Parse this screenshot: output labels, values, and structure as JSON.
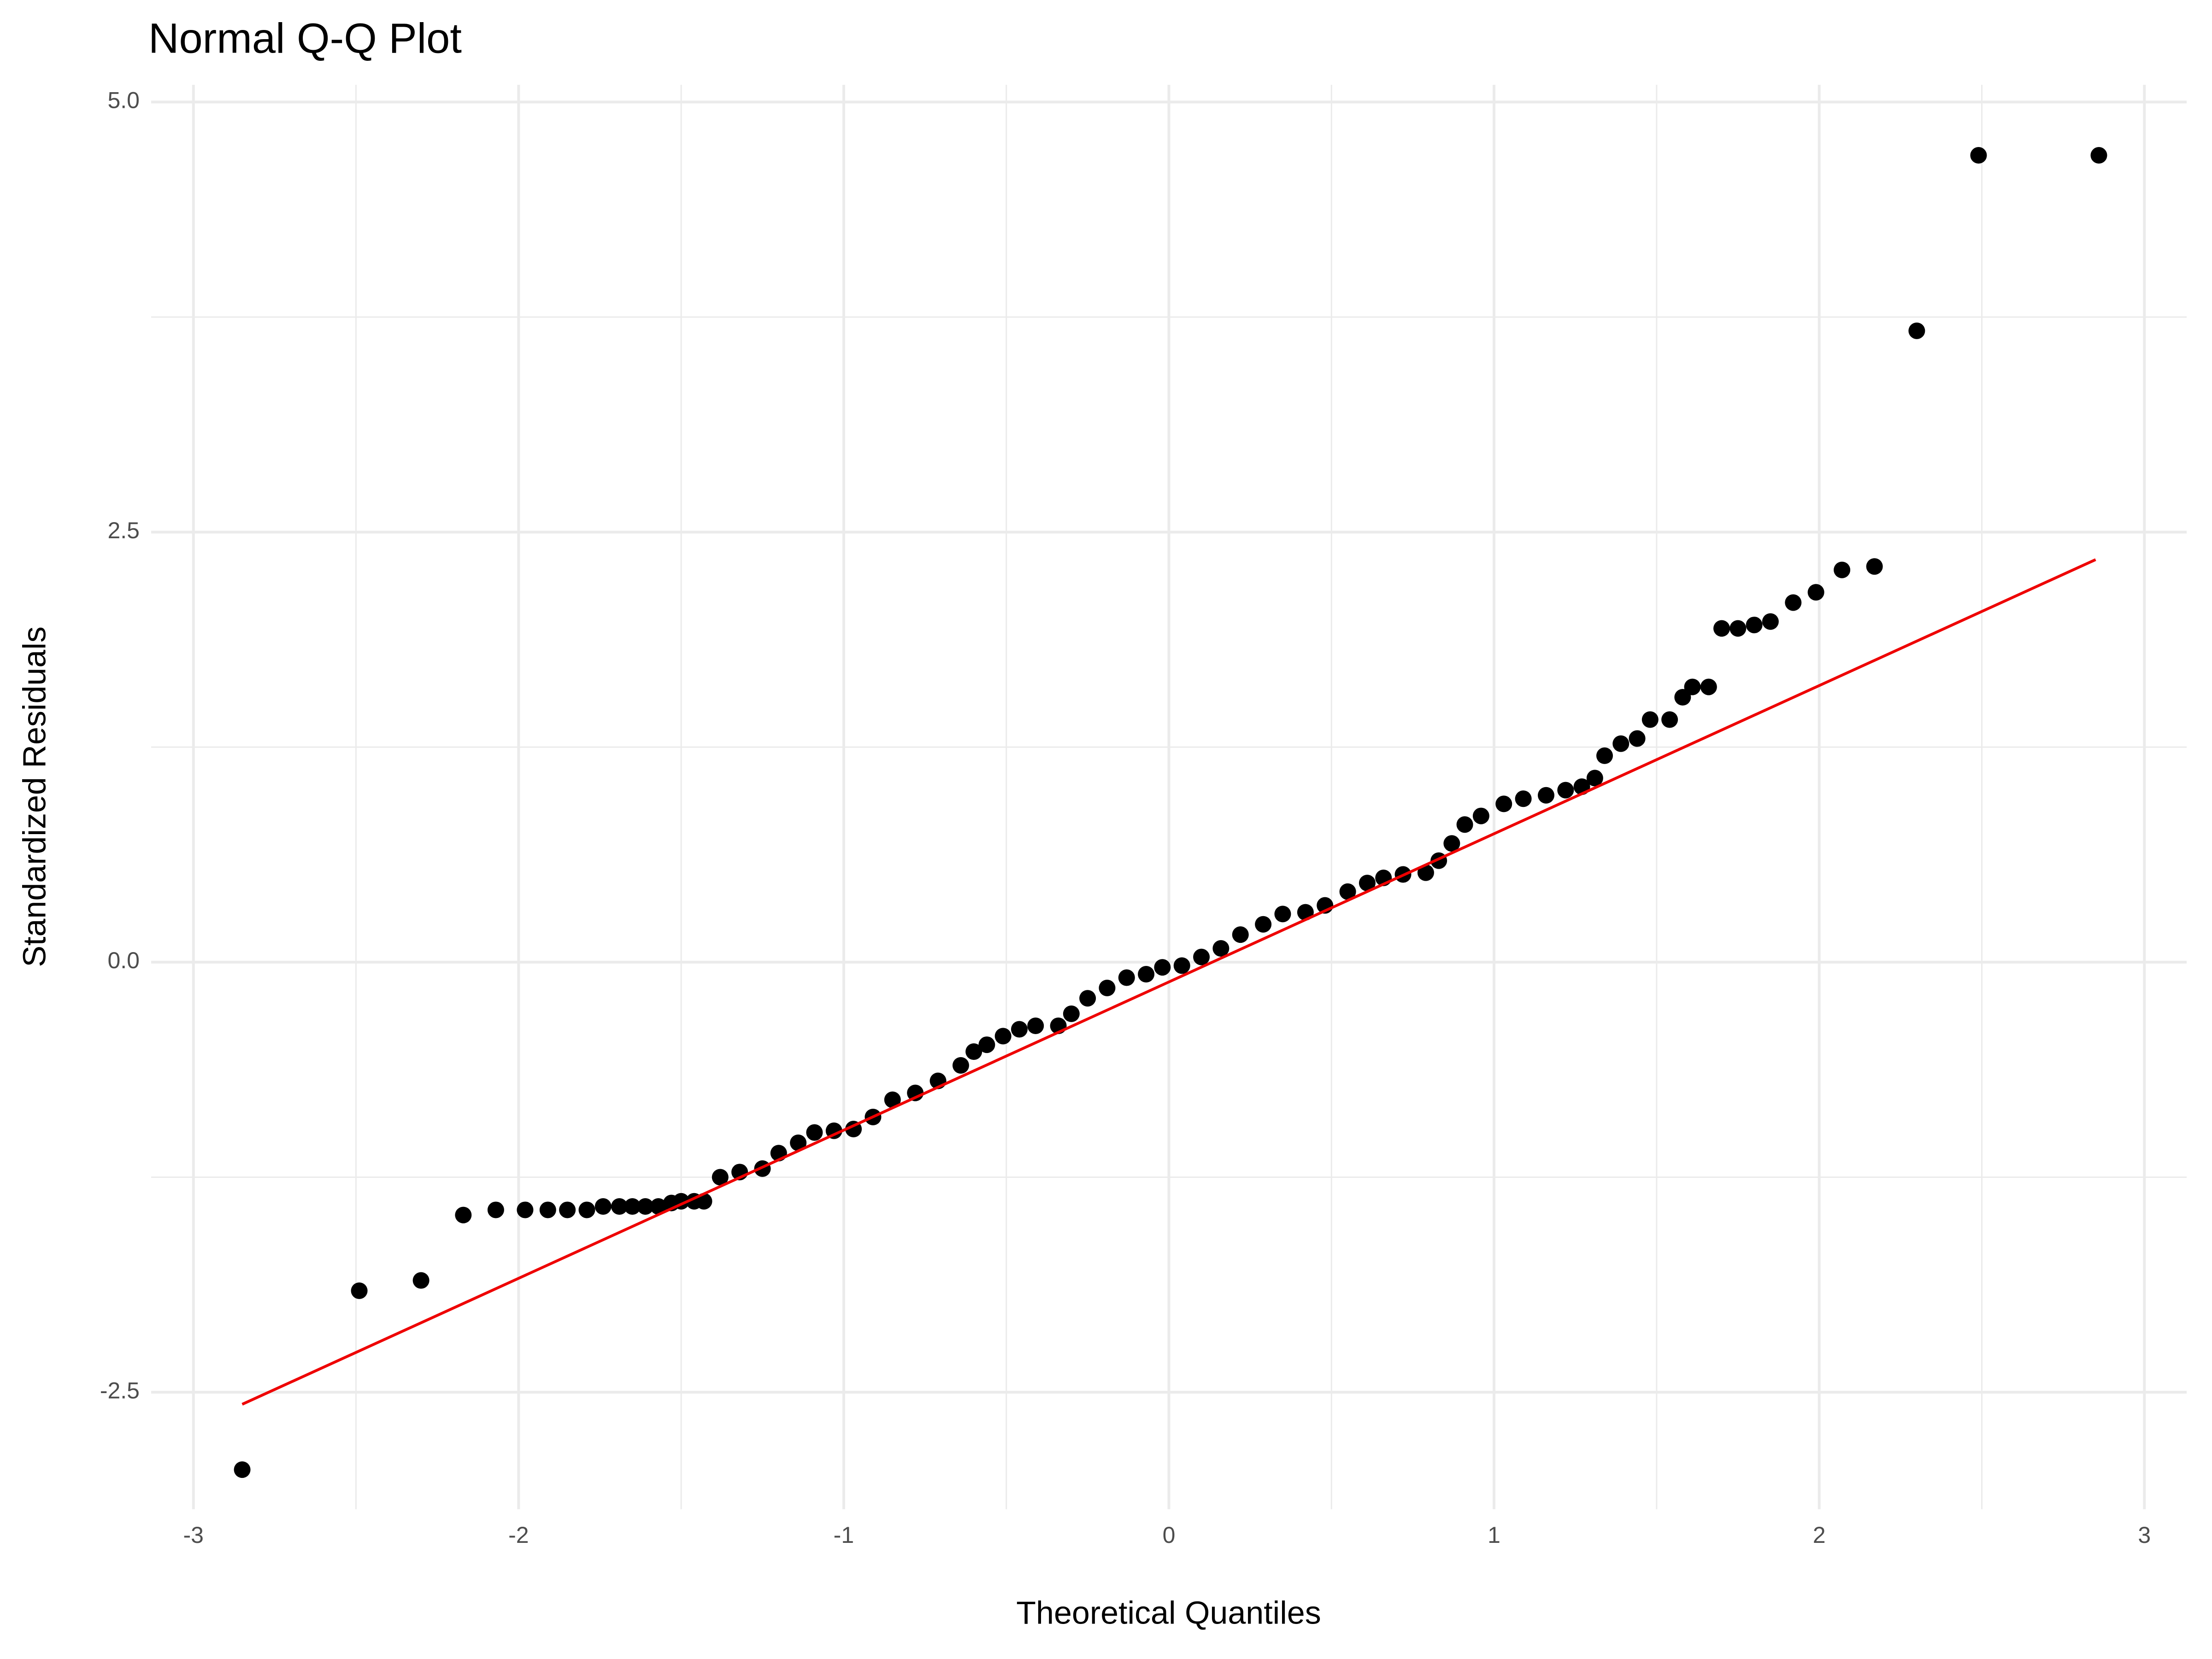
{
  "chart_data": {
    "type": "scatter",
    "title": "Normal Q-Q Plot",
    "x_label": "Theoretical Quantiles",
    "y_label": "Standardized Residuals",
    "xlim": [
      -3.13,
      3.13
    ],
    "ylim": [
      -3.18,
      5.1
    ],
    "xticks": [
      -3,
      -2,
      -1,
      0,
      1,
      2,
      3
    ],
    "yticks": [
      -2.5,
      {
        "value": 0,
        "label": "0.0"
      },
      2.5,
      {
        "value": 5,
        "label": "5.0"
      }
    ],
    "x_minor_grid": [
      -2.5,
      -1.5,
      -0.5,
      0.5,
      1.5,
      2.5
    ],
    "y_minor_grid": [
      -1.25,
      1.25,
      3.75
    ],
    "grid": true,
    "series": [
      {
        "color": "#000000",
        "x": [
          -2.85,
          -2.49,
          -2.3,
          -2.17,
          -2.07,
          -1.98,
          -1.91,
          -1.85,
          -1.79,
          -1.74,
          -1.69,
          -1.65,
          -1.61,
          -1.57,
          -1.53,
          -1.5,
          -1.46,
          -1.43,
          -1.38,
          -1.32,
          -1.25,
          -1.2,
          -1.14,
          -1.09,
          -1.03,
          -0.97,
          -0.91,
          -0.85,
          -0.78,
          -0.71,
          -0.64,
          -0.6,
          -0.56,
          -0.51,
          -0.46,
          -0.41,
          -0.34,
          -0.3,
          -0.25,
          -0.19,
          -0.13,
          -0.07,
          -0.02,
          0.04,
          0.1,
          0.16,
          0.22,
          0.29,
          0.35,
          0.42,
          0.48,
          0.55,
          0.61,
          0.66,
          0.72,
          0.79,
          0.83,
          0.87,
          0.91,
          0.96,
          1.03,
          1.09,
          1.16,
          1.22,
          1.27,
          1.31,
          1.34,
          1.39,
          1.44,
          1.48,
          1.54,
          1.58,
          1.61,
          1.66,
          1.7,
          1.75,
          1.8,
          1.85,
          1.92,
          1.99,
          2.07,
          2.17,
          2.3,
          2.49,
          2.86
        ],
        "values": [
          -2.95,
          -1.91,
          -1.85,
          -1.47,
          -1.44,
          -1.44,
          -1.44,
          -1.44,
          -1.44,
          -1.42,
          -1.42,
          -1.42,
          -1.42,
          -1.42,
          -1.4,
          -1.39,
          -1.39,
          -1.39,
          -1.25,
          -1.22,
          -1.2,
          -1.11,
          -1.05,
          -0.99,
          -0.98,
          -0.97,
          -0.9,
          -0.8,
          -0.76,
          -0.69,
          -0.6,
          -0.52,
          -0.48,
          -0.43,
          -0.39,
          -0.37,
          -0.37,
          -0.3,
          -0.21,
          -0.15,
          -0.09,
          -0.07,
          -0.03,
          -0.02,
          0.03,
          0.08,
          0.16,
          0.22,
          0.28,
          0.29,
          0.33,
          0.41,
          0.46,
          0.49,
          0.51,
          0.52,
          0.59,
          0.69,
          0.8,
          0.85,
          0.92,
          0.95,
          0.97,
          1.0,
          1.02,
          1.07,
          1.2,
          1.27,
          1.3,
          1.41,
          1.41,
          1.54,
          1.6,
          1.6,
          1.94,
          1.94,
          1.96,
          1.98,
          2.09,
          2.15,
          2.28,
          2.3,
          3.67,
          4.69,
          4.69
        ]
      }
    ],
    "reference_line": {
      "color": "#ee0000",
      "x": [
        -2.85,
        2.85
      ],
      "values": [
        -2.57,
        2.34
      ]
    }
  }
}
